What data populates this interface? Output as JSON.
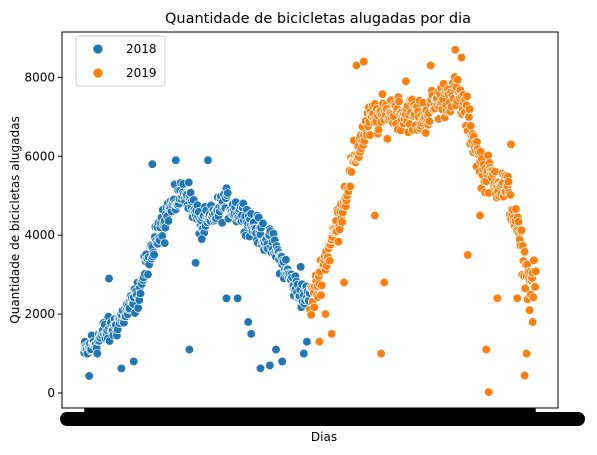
{
  "chart_data": {
    "type": "scatter",
    "title": "Quantidade de bicicletas alugadas por dia",
    "xlabel": "Dias",
    "ylabel": "Quantidade de bicicletas alugadas",
    "ylim": [
      -380,
      9150
    ],
    "yticks": [
      0,
      2000,
      4000,
      6000,
      8000
    ],
    "xlim": [
      -36,
      766
    ],
    "x_tick_labels_note": "731 overlapping daily tick labels render as a solid black band",
    "legend": {
      "placement": "top-left",
      "entries": [
        "2018",
        "2019"
      ]
    },
    "colors": {
      "2018": "#1f77b4",
      "2019": "#ff7f0e"
    },
    "series": [
      {
        "name": "2018",
        "color": "#1f77b4",
        "anchors": [
          [
            0,
            985
          ],
          [
            10,
            1200
          ],
          [
            20,
            1300
          ],
          [
            30,
            1500
          ],
          [
            40,
            1550
          ],
          [
            50,
            1700
          ],
          [
            60,
            1900
          ],
          [
            70,
            2100
          ],
          [
            80,
            2300
          ],
          [
            90,
            2600
          ],
          [
            100,
            3300
          ],
          [
            110,
            3500
          ],
          [
            120,
            4200
          ],
          [
            130,
            4500
          ],
          [
            140,
            4700
          ],
          [
            150,
            4900
          ],
          [
            160,
            5100
          ],
          [
            170,
            5000
          ],
          [
            180,
            4500
          ],
          [
            190,
            4300
          ],
          [
            200,
            4300
          ],
          [
            210,
            4500
          ],
          [
            220,
            4700
          ],
          [
            230,
            4800
          ],
          [
            240,
            4700
          ],
          [
            250,
            4600
          ],
          [
            260,
            4500
          ],
          [
            270,
            4300
          ],
          [
            280,
            4100
          ],
          [
            290,
            4000
          ],
          [
            300,
            3800
          ],
          [
            310,
            3600
          ],
          [
            320,
            3300
          ],
          [
            330,
            3000
          ],
          [
            340,
            2700
          ],
          [
            350,
            2500
          ],
          [
            364,
            2400
          ]
        ],
        "spread": 520,
        "extra_points": [
          [
            8,
            431
          ],
          [
            60,
            623
          ],
          [
            80,
            800
          ],
          [
            110,
            5800
          ],
          [
            148,
            5900
          ],
          [
            170,
            1100
          ],
          [
            180,
            3300
          ],
          [
            200,
            5900
          ],
          [
            230,
            2400
          ],
          [
            248,
            2400
          ],
          [
            265,
            1800
          ],
          [
            270,
            1500
          ],
          [
            285,
            627
          ],
          [
            300,
            700
          ],
          [
            310,
            1100
          ],
          [
            320,
            800
          ],
          [
            350,
            3200
          ],
          [
            355,
            1000
          ],
          [
            360,
            1300
          ],
          [
            40,
            2900
          ],
          [
            130,
            3800
          ],
          [
            190,
            3900
          ]
        ]
      },
      {
        "name": "2019",
        "color": "#ff7f0e",
        "anchors": [
          [
            365,
            2300
          ],
          [
            375,
            2600
          ],
          [
            385,
            3200
          ],
          [
            395,
            3600
          ],
          [
            405,
            4100
          ],
          [
            415,
            4600
          ],
          [
            425,
            5200
          ],
          [
            435,
            5800
          ],
          [
            445,
            6300
          ],
          [
            455,
            6700
          ],
          [
            465,
            6900
          ],
          [
            475,
            7000
          ],
          [
            485,
            7000
          ],
          [
            495,
            7100
          ],
          [
            505,
            7200
          ],
          [
            515,
            7100
          ],
          [
            525,
            7100
          ],
          [
            535,
            7000
          ],
          [
            545,
            7000
          ],
          [
            555,
            7100
          ],
          [
            565,
            7300
          ],
          [
            575,
            7400
          ],
          [
            585,
            7500
          ],
          [
            595,
            7600
          ],
          [
            605,
            7500
          ],
          [
            615,
            7200
          ],
          [
            625,
            6700
          ],
          [
            635,
            6100
          ],
          [
            645,
            5600
          ],
          [
            655,
            5500
          ],
          [
            665,
            5400
          ],
          [
            675,
            5300
          ],
          [
            685,
            5100
          ],
          [
            695,
            4500
          ],
          [
            705,
            3800
          ],
          [
            715,
            3000
          ],
          [
            730,
            2700
          ]
        ],
        "spread": 700,
        "extra_points": [
          [
            380,
            1300
          ],
          [
            390,
            2000
          ],
          [
            400,
            1500
          ],
          [
            420,
            2800
          ],
          [
            440,
            8300
          ],
          [
            452,
            8400
          ],
          [
            480,
            1000
          ],
          [
            485,
            2800
          ],
          [
            520,
            7900
          ],
          [
            560,
            8300
          ],
          [
            600,
            8700
          ],
          [
            610,
            8500
          ],
          [
            620,
            3500
          ],
          [
            640,
            4500
          ],
          [
            650,
            1100
          ],
          [
            654,
            22
          ],
          [
            668,
            2400
          ],
          [
            700,
            2400
          ],
          [
            712,
            441
          ],
          [
            715,
            1000
          ],
          [
            720,
            2100
          ],
          [
            725,
            1800
          ],
          [
            690,
            6300
          ],
          [
            470,
            4500
          ]
        ]
      }
    ]
  }
}
